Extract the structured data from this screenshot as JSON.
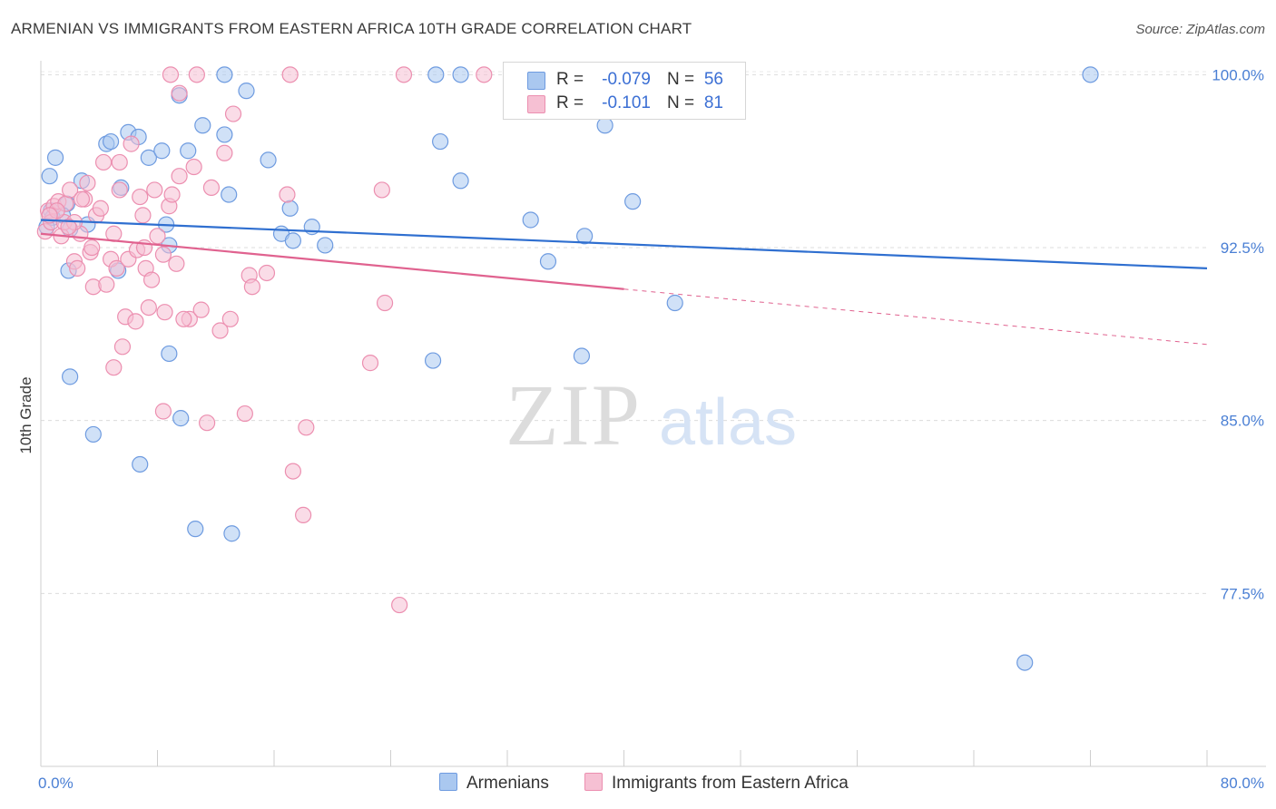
{
  "title": "ARMENIAN VS IMMIGRANTS FROM EASTERN AFRICA 10TH GRADE CORRELATION CHART",
  "source": "Source: ZipAtlas.com",
  "watermark": {
    "zip": "ZIP",
    "atlas": "atlas"
  },
  "colors": {
    "armenians_fill": "#aac8f0",
    "armenians_stroke": "#6e9be0",
    "armenians_line": "#2f6fd0",
    "eastern_africa_fill": "#f6c0d3",
    "eastern_africa_stroke": "#ec8fb0",
    "eastern_africa_line": "#e0628f",
    "tick_color": "#4a7fd4"
  },
  "legend": {
    "row1": {
      "r_label": "R =",
      "r_value": "-0.079",
      "n_label": "N =",
      "n_value": "56"
    },
    "row2": {
      "r_label": "R =",
      "r_value": "-0.101",
      "n_label": "N =",
      "n_value": "81"
    }
  },
  "bottom_legend": {
    "armenians": "Armenians",
    "eastern_africa": "Immigrants from Eastern Africa"
  },
  "chart_data": {
    "type": "scatter",
    "title": "ARMENIAN VS IMMIGRANTS FROM EASTERN AFRICA 10TH GRADE CORRELATION CHART",
    "xlabel": "",
    "ylabel": "10th Grade",
    "xlim": [
      0,
      80
    ],
    "ylim": [
      70.0,
      100.8
    ],
    "x_tick_labels": [
      "0.0%",
      "80.0%"
    ],
    "y_ticks": [
      77.5,
      85.0,
      92.5,
      100.0
    ],
    "y_tick_labels": [
      "77.5%",
      "85.0%",
      "92.5%",
      "100.0%"
    ],
    "grid": true,
    "series": [
      {
        "name": "Armenians",
        "trend": {
          "x": [
            0,
            80
          ],
          "y": [
            93.7,
            91.6
          ],
          "dashed_from": null
        },
        "points": [
          [
            0.6,
            95.6
          ],
          [
            1.0,
            96.4
          ],
          [
            0.7,
            94.1
          ],
          [
            0.8,
            93.8
          ],
          [
            1.8,
            94.4
          ],
          [
            1.9,
            91.5
          ],
          [
            2.0,
            93.3
          ],
          [
            2.8,
            95.4
          ],
          [
            3.2,
            93.5
          ],
          [
            4.5,
            97.0
          ],
          [
            4.8,
            97.1
          ],
          [
            5.3,
            91.5
          ],
          [
            5.5,
            95.1
          ],
          [
            6.0,
            97.5
          ],
          [
            6.7,
            97.3
          ],
          [
            7.4,
            96.4
          ],
          [
            8.3,
            96.7
          ],
          [
            8.6,
            93.5
          ],
          [
            8.8,
            92.6
          ],
          [
            9.5,
            99.1
          ],
          [
            10.1,
            96.7
          ],
          [
            11.1,
            97.8
          ],
          [
            12.6,
            97.4
          ],
          [
            12.9,
            94.8
          ],
          [
            14.1,
            99.3
          ],
          [
            15.6,
            96.3
          ],
          [
            16.5,
            93.1
          ],
          [
            17.1,
            94.2
          ],
          [
            17.3,
            92.8
          ],
          [
            18.6,
            93.4
          ],
          [
            19.5,
            92.6
          ],
          [
            27.4,
            97.1
          ],
          [
            28.8,
            95.4
          ],
          [
            33.6,
            93.7
          ],
          [
            34.8,
            91.9
          ],
          [
            37.3,
            93.0
          ],
          [
            38.7,
            97.8
          ],
          [
            40.6,
            94.5
          ],
          [
            43.5,
            90.1
          ],
          [
            2.0,
            86.9
          ],
          [
            3.6,
            84.4
          ],
          [
            8.8,
            87.9
          ],
          [
            9.6,
            85.1
          ],
          [
            6.8,
            83.1
          ],
          [
            10.6,
            80.3
          ],
          [
            13.1,
            80.1
          ],
          [
            26.9,
            87.6
          ],
          [
            37.1,
            87.8
          ],
          [
            12.6,
            100.0
          ],
          [
            27.1,
            100.0
          ],
          [
            28.8,
            100.0
          ],
          [
            32.4,
            100.0
          ],
          [
            72.0,
            100.0
          ],
          [
            67.5,
            74.5
          ],
          [
            0.4,
            93.4
          ],
          [
            1.5,
            93.9
          ]
        ]
      },
      {
        "name": "Immigrants from Eastern Africa",
        "trend": {
          "x": [
            0,
            80
          ],
          "y": [
            93.1,
            88.3
          ],
          "dashed_from": 40
        },
        "points": [
          [
            0.3,
            93.2
          ],
          [
            0.5,
            94.1
          ],
          [
            0.7,
            93.6
          ],
          [
            0.9,
            94.3
          ],
          [
            1.2,
            94.5
          ],
          [
            1.4,
            93.0
          ],
          [
            1.6,
            93.6
          ],
          [
            1.7,
            94.4
          ],
          [
            2.0,
            95.0
          ],
          [
            2.3,
            91.9
          ],
          [
            2.5,
            91.6
          ],
          [
            2.7,
            93.1
          ],
          [
            3.0,
            94.6
          ],
          [
            3.2,
            95.3
          ],
          [
            3.4,
            92.3
          ],
          [
            3.6,
            90.8
          ],
          [
            3.8,
            93.9
          ],
          [
            4.1,
            94.2
          ],
          [
            4.3,
            96.2
          ],
          [
            4.5,
            90.9
          ],
          [
            4.8,
            92.0
          ],
          [
            5.0,
            93.1
          ],
          [
            5.2,
            91.6
          ],
          [
            5.4,
            96.2
          ],
          [
            5.6,
            88.2
          ],
          [
            5.8,
            89.5
          ],
          [
            6.0,
            92.0
          ],
          [
            6.2,
            97.0
          ],
          [
            6.5,
            89.3
          ],
          [
            6.8,
            94.7
          ],
          [
            7.0,
            93.9
          ],
          [
            7.2,
            91.6
          ],
          [
            7.4,
            89.9
          ],
          [
            7.6,
            91.1
          ],
          [
            7.8,
            95.0
          ],
          [
            8.0,
            93.0
          ],
          [
            8.4,
            92.2
          ],
          [
            8.5,
            89.7
          ],
          [
            8.8,
            94.3
          ],
          [
            9.0,
            94.8
          ],
          [
            9.3,
            91.8
          ],
          [
            9.5,
            95.6
          ],
          [
            10.2,
            89.4
          ],
          [
            11.0,
            89.8
          ],
          [
            11.7,
            95.1
          ],
          [
            12.3,
            88.9
          ],
          [
            12.6,
            96.6
          ],
          [
            13.2,
            98.3
          ],
          [
            14.3,
            91.3
          ],
          [
            14.5,
            90.8
          ],
          [
            15.5,
            91.4
          ],
          [
            16.9,
            94.8
          ],
          [
            17.3,
            82.8
          ],
          [
            18.0,
            80.9
          ],
          [
            18.2,
            84.7
          ],
          [
            22.6,
            87.5
          ],
          [
            23.6,
            90.1
          ],
          [
            23.4,
            95.0
          ],
          [
            8.4,
            85.4
          ],
          [
            11.4,
            84.9
          ],
          [
            14.0,
            85.3
          ],
          [
            5.0,
            87.3
          ],
          [
            24.6,
            77.0
          ],
          [
            9.5,
            99.2
          ],
          [
            8.9,
            100.0
          ],
          [
            10.7,
            100.0
          ],
          [
            17.1,
            100.0
          ],
          [
            24.9,
            100.0
          ],
          [
            30.4,
            100.0
          ],
          [
            2.3,
            93.6
          ],
          [
            1.1,
            94.1
          ],
          [
            0.6,
            93.9
          ],
          [
            3.5,
            92.5
          ],
          [
            6.6,
            92.4
          ],
          [
            7.1,
            92.5
          ],
          [
            9.8,
            89.4
          ],
          [
            13.0,
            89.4
          ],
          [
            5.4,
            95.0
          ],
          [
            10.5,
            96.0
          ],
          [
            2.8,
            94.6
          ],
          [
            1.9,
            93.4
          ]
        ]
      }
    ]
  }
}
